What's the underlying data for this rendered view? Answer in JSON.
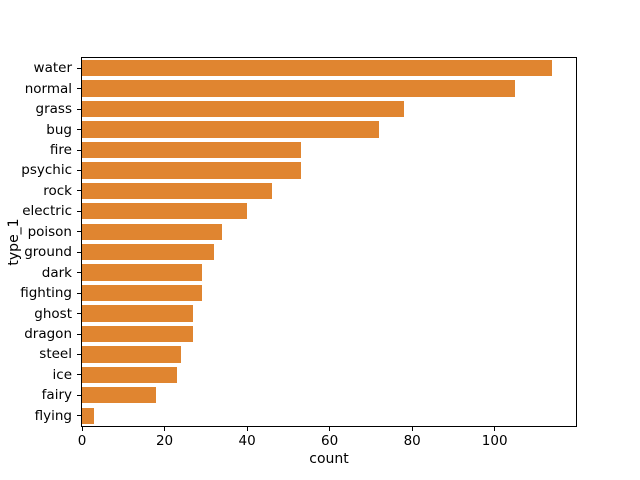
{
  "chart_data": {
    "type": "bar",
    "orientation": "horizontal",
    "title": "",
    "xlabel": "count",
    "ylabel": "type_1",
    "categories": [
      "water",
      "normal",
      "grass",
      "bug",
      "fire",
      "psychic",
      "rock",
      "electric",
      "poison",
      "ground",
      "dark",
      "fighting",
      "ghost",
      "dragon",
      "steel",
      "ice",
      "fairy",
      "flying"
    ],
    "values": [
      114,
      105,
      78,
      72,
      53,
      53,
      46,
      40,
      34,
      32,
      29,
      29,
      27,
      27,
      24,
      23,
      18,
      3
    ],
    "xticks": [
      0,
      20,
      40,
      60,
      80,
      100
    ],
    "xlim": [
      0,
      119.7
    ],
    "grid": false,
    "legend": "none",
    "bar_color": "#e08530",
    "spine_color": "#000000",
    "background_color": "#ffffff"
  }
}
